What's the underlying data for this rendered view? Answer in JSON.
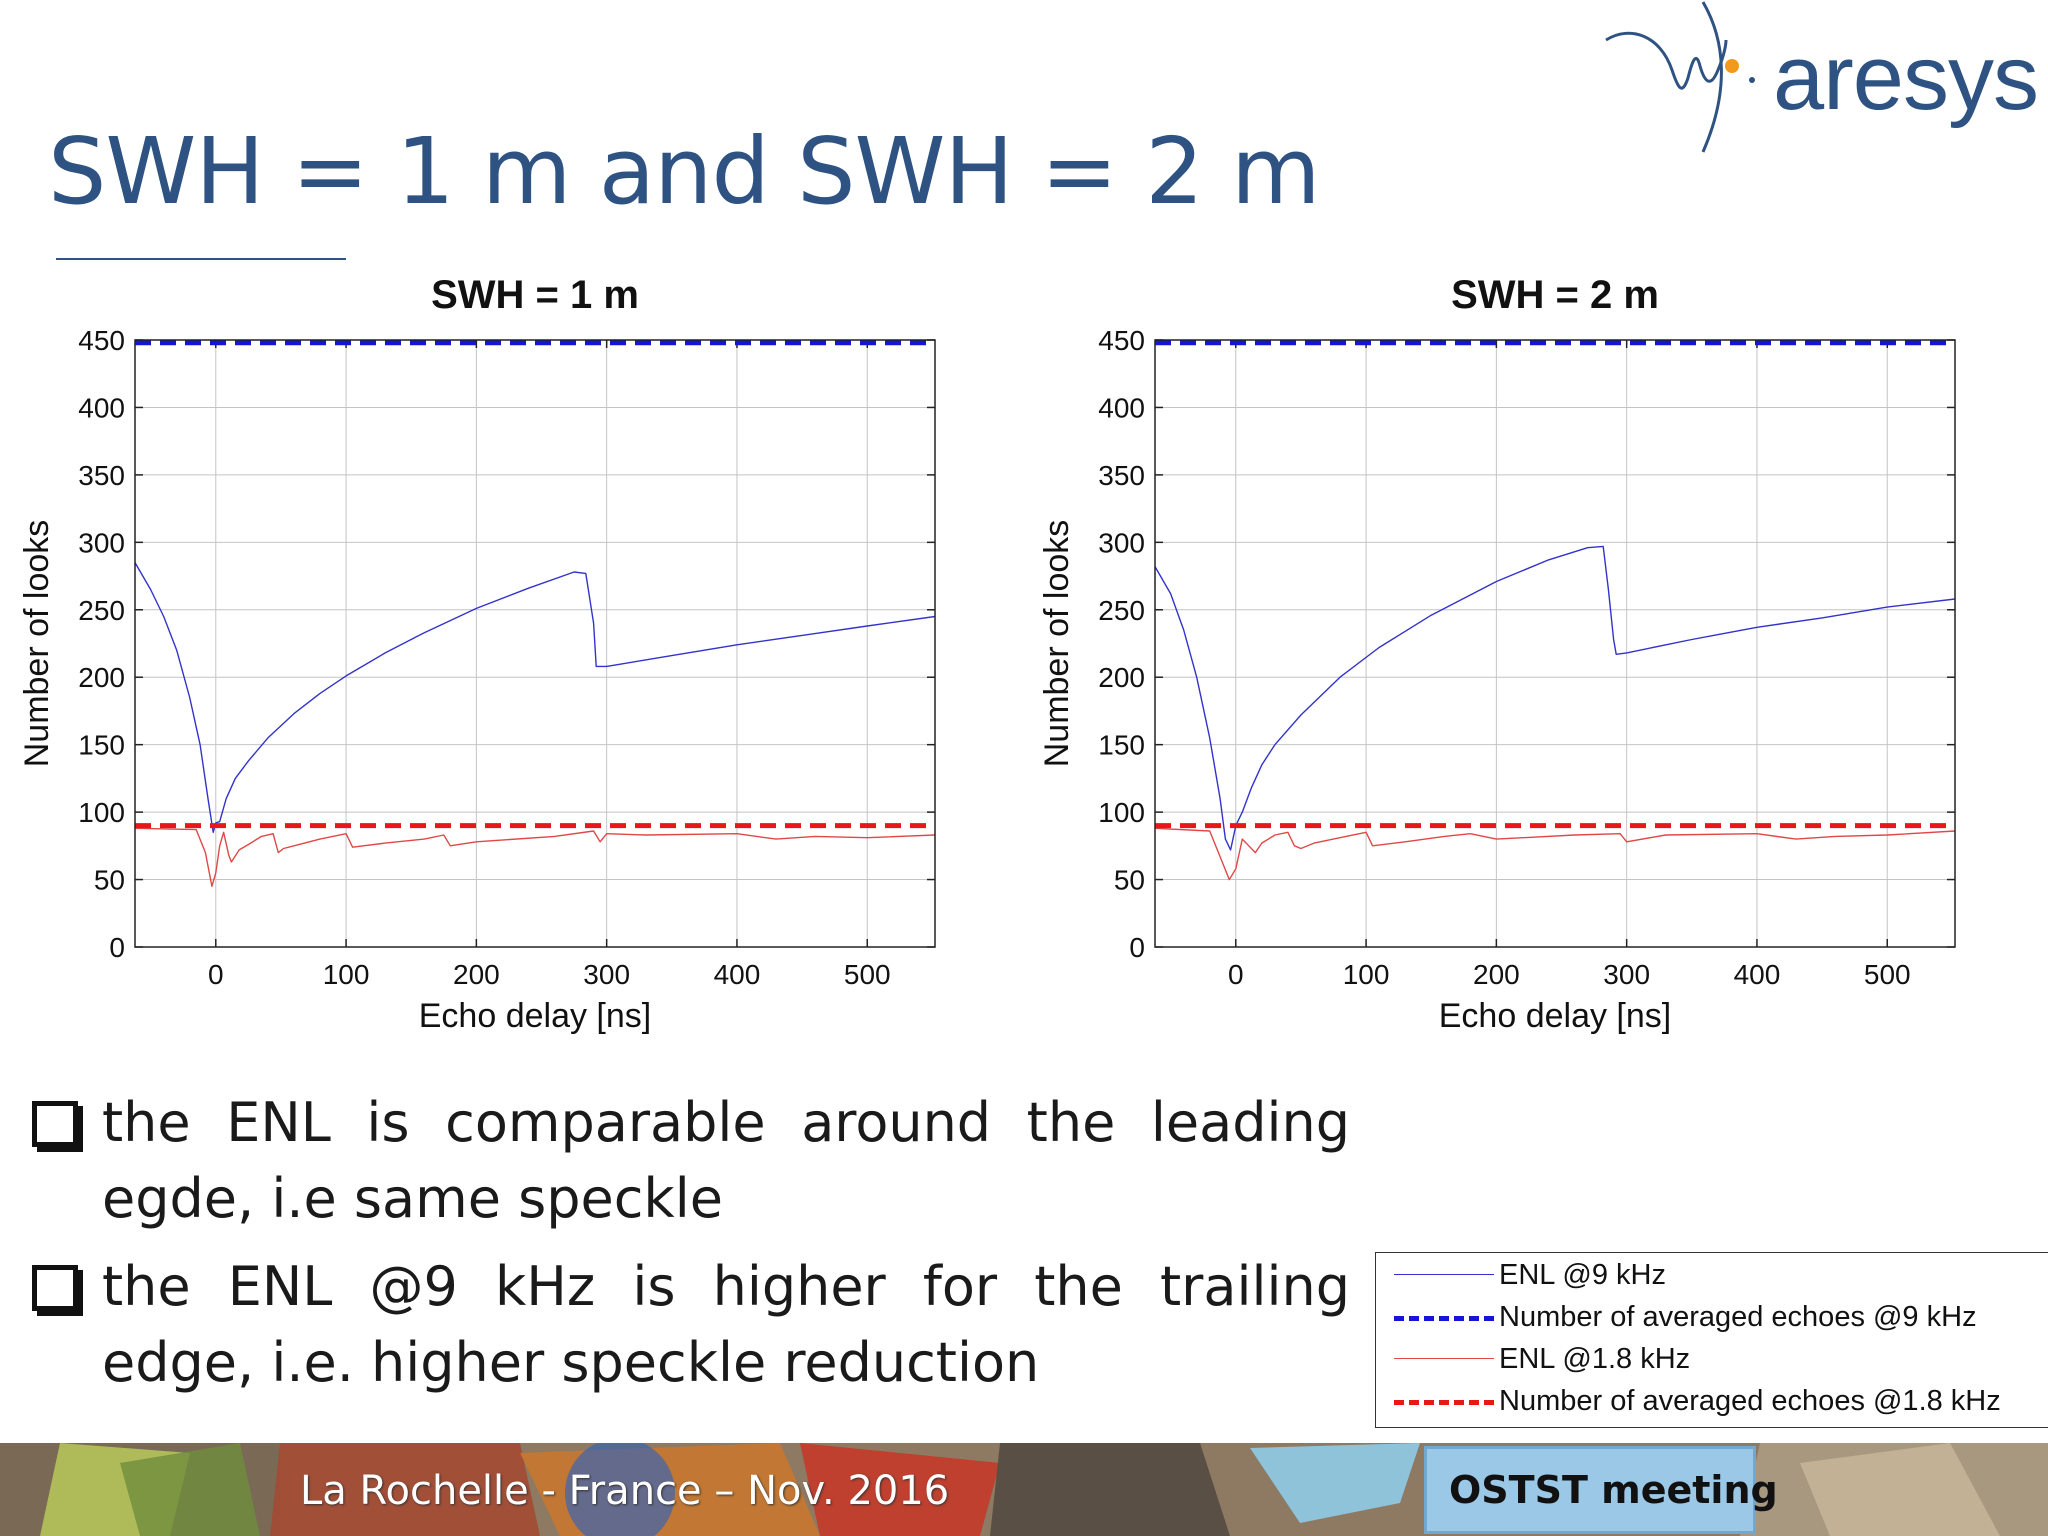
{
  "slide": {
    "title": "SWH = 1 m and SWH = 2 m",
    "logo_text": "aresys"
  },
  "bullets": [
    {
      "text": "the ENL is comparable around the leading egde, i.e same speckle"
    },
    {
      "text": "the ENL @9 kHz is higher for the trailing edge, i.e. higher speckle reduction"
    }
  ],
  "legend": {
    "items": [
      {
        "label": "ENL @9 kHz",
        "color": "#3333cc",
        "style": "thin"
      },
      {
        "label": "Number of averaged echoes @9 kHz",
        "color": "#1515d8",
        "style": "dashed"
      },
      {
        "label": "ENL @1.8 kHz",
        "color": "#e04848",
        "style": "thin"
      },
      {
        "label": "Number of averaged echoes @1.8 kHz",
        "color": "#e81818",
        "style": "dashed"
      }
    ]
  },
  "footer": {
    "left_text": "La Rochelle -  France – Nov. 2016",
    "right_text": "OSTST meeting"
  },
  "chart_data": [
    {
      "type": "line",
      "title": "SWH = 1 m",
      "xlabel": "Echo delay [ns]",
      "ylabel": "Number of looks",
      "xlim": [
        -62,
        552
      ],
      "ylim": [
        0,
        450
      ],
      "xticks": [
        0,
        100,
        200,
        300,
        400,
        500
      ],
      "yticks": [
        0,
        50,
        100,
        150,
        200,
        250,
        300,
        350,
        400,
        450
      ],
      "grid": true,
      "series": [
        {
          "name": "ENL @9 kHz",
          "style": "thin",
          "color": "#3333cc",
          "x": [
            -62,
            -50,
            -40,
            -30,
            -20,
            -12,
            -6,
            -2,
            0,
            3,
            8,
            15,
            25,
            40,
            60,
            80,
            100,
            130,
            160,
            200,
            240,
            275,
            284,
            290,
            292,
            300,
            350,
            400,
            450,
            500,
            552
          ],
          "y": [
            285,
            265,
            245,
            220,
            185,
            150,
            110,
            85,
            92,
            93,
            110,
            125,
            138,
            155,
            173,
            188,
            201,
            218,
            233,
            251,
            266,
            278,
            277,
            240,
            208,
            208,
            216,
            224,
            231,
            238,
            245
          ]
        },
        {
          "name": "Number of averaged echoes @9 kHz",
          "style": "dashed",
          "color": "#1515d8",
          "x": [
            -62,
            552
          ],
          "y": [
            448,
            448
          ]
        },
        {
          "name": "ENL @1.8 kHz",
          "style": "thin",
          "color": "#e04848",
          "x": [
            -62,
            -15,
            -8,
            -3,
            0,
            3,
            6,
            10,
            12,
            18,
            25,
            35,
            44,
            48,
            52,
            60,
            80,
            100,
            105,
            130,
            160,
            175,
            180,
            200,
            260,
            290,
            295,
            300,
            330,
            400,
            430,
            460,
            500,
            552
          ],
          "y": [
            88,
            87,
            70,
            45,
            55,
            75,
            85,
            68,
            63,
            72,
            76,
            82,
            84,
            70,
            73,
            75,
            80,
            84,
            74,
            77,
            80,
            83,
            75,
            78,
            82,
            86,
            78,
            84,
            83,
            84,
            80,
            82,
            81,
            83
          ]
        },
        {
          "name": "Number of averaged echoes @1.8 kHz",
          "style": "dashed",
          "color": "#e81818",
          "x": [
            -62,
            552
          ],
          "y": [
            90,
            90
          ]
        }
      ]
    },
    {
      "type": "line",
      "title": "SWH = 2 m",
      "xlabel": "Echo delay [ns]",
      "ylabel": "Number of looks",
      "xlim": [
        -62,
        552
      ],
      "ylim": [
        0,
        450
      ],
      "xticks": [
        0,
        100,
        200,
        300,
        400,
        500
      ],
      "yticks": [
        0,
        50,
        100,
        150,
        200,
        250,
        300,
        350,
        400,
        450
      ],
      "grid": true,
      "series": [
        {
          "name": "ENL @9 kHz",
          "style": "thin",
          "color": "#3333cc",
          "x": [
            -62,
            -50,
            -40,
            -30,
            -20,
            -12,
            -8,
            -4,
            0,
            5,
            12,
            20,
            30,
            50,
            80,
            110,
            150,
            200,
            240,
            270,
            282,
            286,
            290,
            292,
            300,
            350,
            400,
            450,
            500,
            552
          ],
          "y": [
            282,
            262,
            235,
            200,
            155,
            110,
            80,
            72,
            90,
            100,
            118,
            135,
            150,
            172,
            200,
            222,
            246,
            271,
            287,
            296,
            297,
            265,
            228,
            217,
            218,
            228,
            237,
            244,
            252,
            258
          ]
        },
        {
          "name": "Number of averaged echoes @9 kHz",
          "style": "dashed",
          "color": "#1515d8",
          "x": [
            -62,
            552
          ],
          "y": [
            448,
            448
          ]
        },
        {
          "name": "ENL @1.8 kHz",
          "style": "thin",
          "color": "#e04848",
          "x": [
            -62,
            -20,
            -10,
            -5,
            0,
            5,
            10,
            15,
            20,
            30,
            40,
            45,
            50,
            60,
            80,
            100,
            105,
            130,
            160,
            180,
            200,
            260,
            295,
            300,
            330,
            400,
            430,
            460,
            500,
            552
          ],
          "y": [
            88,
            86,
            62,
            50,
            58,
            80,
            75,
            70,
            77,
            83,
            85,
            75,
            73,
            77,
            81,
            85,
            75,
            78,
            82,
            84,
            80,
            83,
            84,
            78,
            83,
            84,
            80,
            82,
            83,
            86
          ]
        },
        {
          "name": "Number of averaged echoes @1.8 kHz",
          "style": "dashed",
          "color": "#e81818",
          "x": [
            -62,
            552
          ],
          "y": [
            90,
            90
          ]
        }
      ]
    }
  ]
}
